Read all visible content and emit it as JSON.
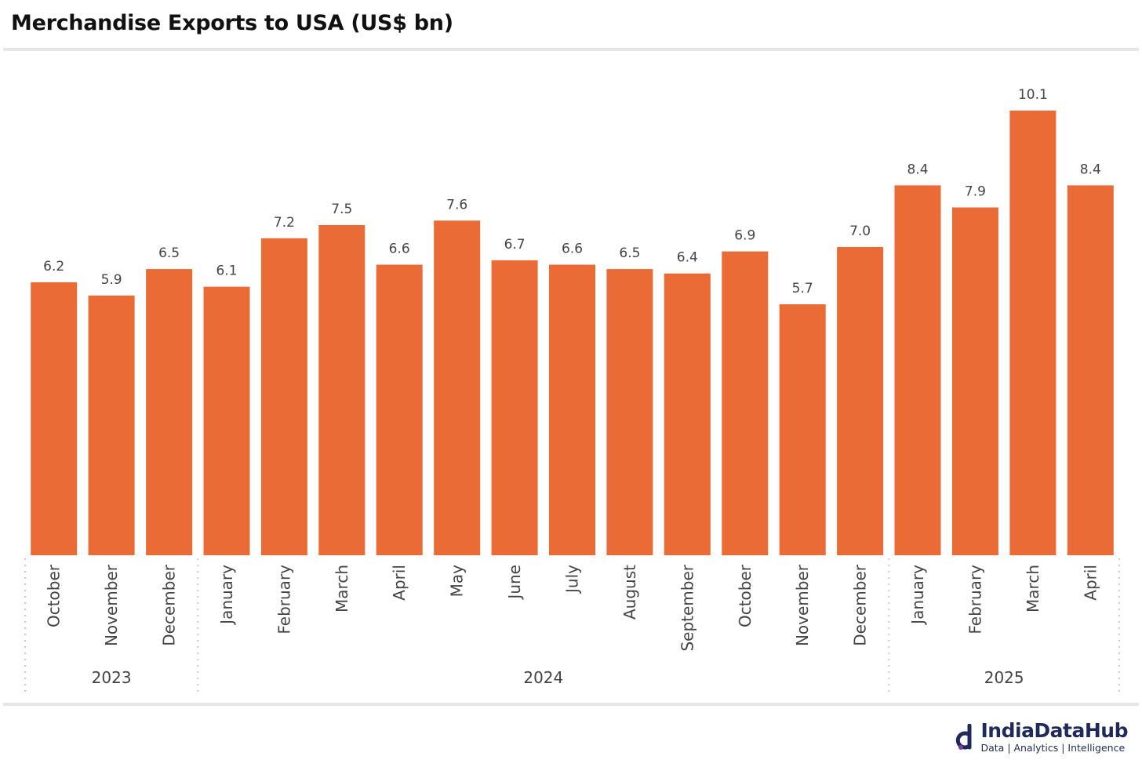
{
  "title": "Merchandise Exports to USA (US$ bn)",
  "brand": {
    "name": "IndiaDataHub",
    "tagline": "Data | Analytics | Intelligence"
  },
  "colors": {
    "bar": "#EA6B35",
    "axis_text": "#444444",
    "divider": "#c8c8c8",
    "rule": "#e6e6e6"
  },
  "chart_data": {
    "type": "bar",
    "categories": [
      "October",
      "November",
      "December",
      "January",
      "February",
      "March",
      "April",
      "May",
      "June",
      "July",
      "August",
      "September",
      "October",
      "November",
      "December",
      "January",
      "February",
      "March",
      "April"
    ],
    "groups": [
      {
        "label": "2023",
        "count": 3
      },
      {
        "label": "2024",
        "count": 12
      },
      {
        "label": "2025",
        "count": 4
      }
    ],
    "values": [
      6.2,
      5.9,
      6.5,
      6.1,
      7.2,
      7.5,
      6.6,
      7.6,
      6.7,
      6.6,
      6.5,
      6.4,
      6.9,
      5.7,
      7.0,
      8.4,
      7.9,
      10.1,
      8.4
    ],
    "value_labels": [
      "6.2",
      "5.9",
      "6.5",
      "6.1",
      "7.2",
      "7.5",
      "6.6",
      "7.6",
      "6.7",
      "6.6",
      "6.5",
      "6.4",
      "6.9",
      "5.7",
      "7.0",
      "8.4",
      "7.9",
      "10.1",
      "8.4"
    ],
    "ylim": [
      0,
      10.1
    ],
    "grid": false,
    "legend": "none"
  }
}
